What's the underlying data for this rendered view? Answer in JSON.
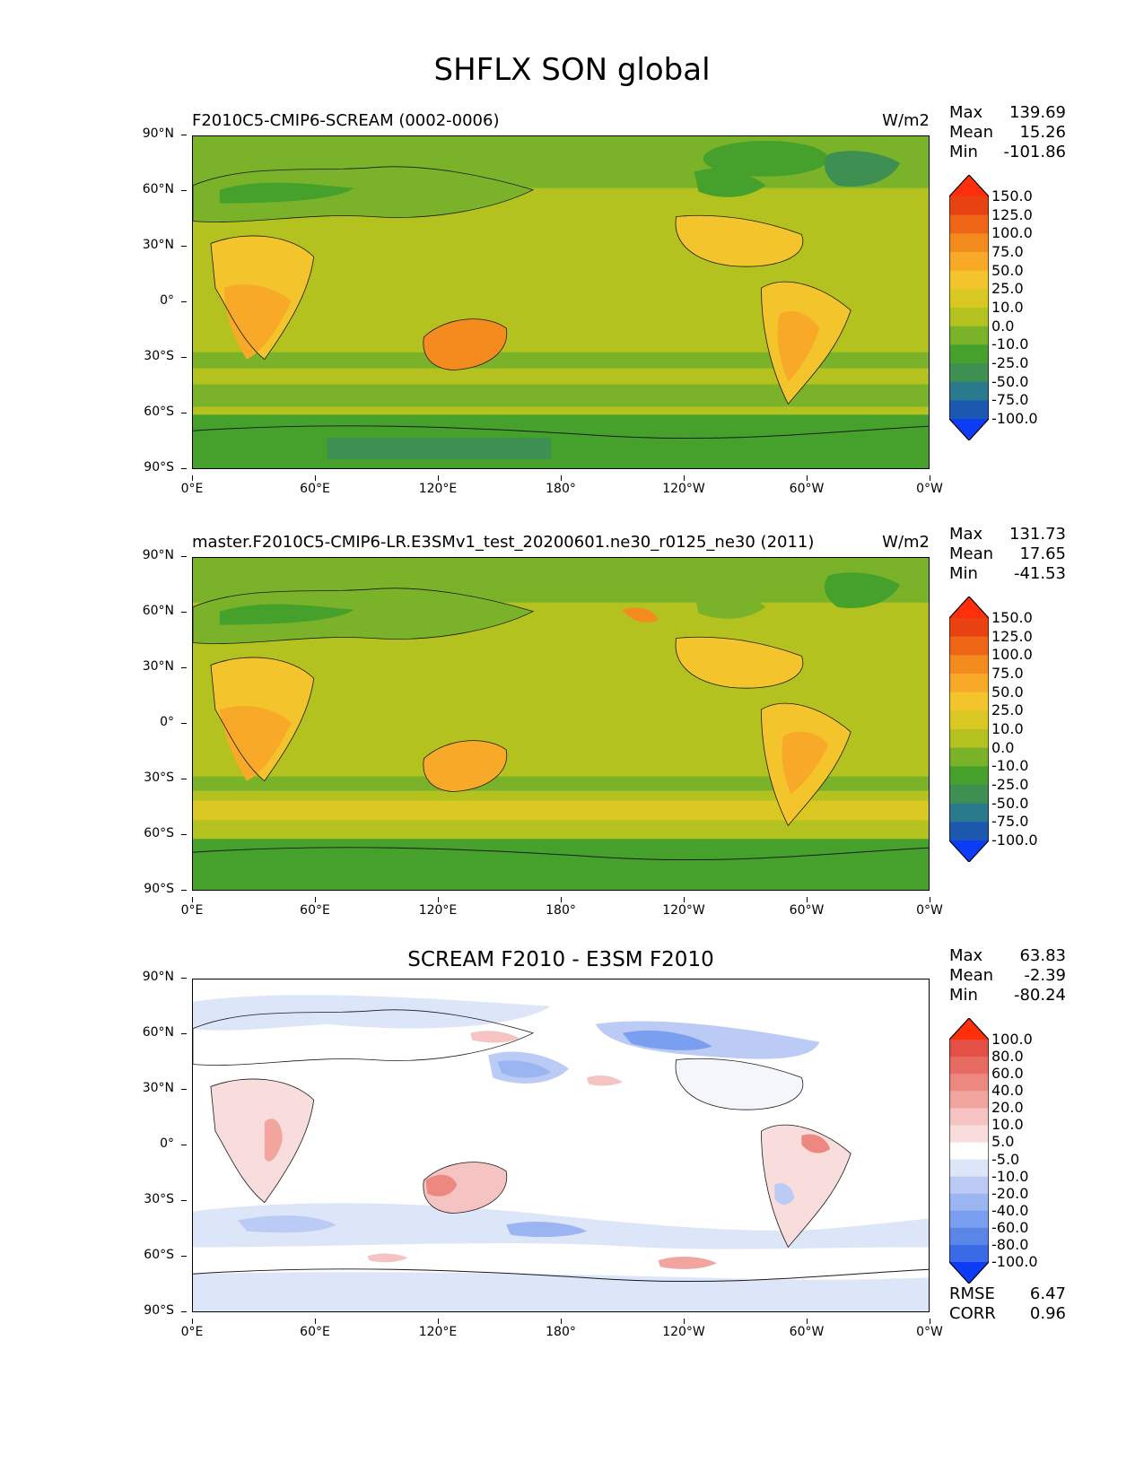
{
  "figure_title": "SHFLX SON global",
  "lat_ticks": [
    "90°N",
    "60°N",
    "30°N",
    "0°",
    "30°S",
    "60°S",
    "90°S"
  ],
  "lon_ticks": [
    "0°E",
    "60°E",
    "120°E",
    "180°",
    "120°W",
    "60°W",
    "0°W"
  ],
  "colors": {
    "test_palette": [
      "#0c3cf5",
      "#1d58b0",
      "#2a7a8e",
      "#3e8f52",
      "#45a12c",
      "#7ab22a",
      "#b3c21f",
      "#d9c722",
      "#f3c42b",
      "#f7a927",
      "#f48b1e",
      "#ef6616",
      "#e84212",
      "#ff2f0c"
    ],
    "diff_palette": [
      "#0c3cf5",
      "#3a6ae6",
      "#5a86e8",
      "#7b9ff0",
      "#9bb5f2",
      "#bccbf5",
      "#dde5f9",
      "#ffffff",
      "#f9dcdc",
      "#f6c3c3",
      "#f1a59e",
      "#ec8880",
      "#e76a63",
      "#e44f46",
      "#ff2f0c"
    ],
    "coast": "#1a1a1a"
  },
  "panels": [
    {
      "id": "test",
      "label": "F2010C5-CMIP6-SCREAM (0002-0006)",
      "units": "W/m2",
      "stats": {
        "max_label": "Max",
        "max": "139.69",
        "mean_label": "Mean",
        "mean": "15.26",
        "min_label": "Min",
        "min": "-101.86"
      },
      "colorbar_levels": [
        "150.0",
        "125.0",
        "100.0",
        "75.0",
        "50.0",
        "25.0",
        "10.0",
        "0.0",
        "-10.0",
        "-25.0",
        "-50.0",
        "-75.0",
        "-100.0"
      ]
    },
    {
      "id": "ref",
      "label": "master.F2010C5-CMIP6-LR.E3SMv1_test_20200601.ne30_r0125_ne30 (2011)",
      "units": "W/m2",
      "stats": {
        "max_label": "Max",
        "max": "131.73",
        "mean_label": "Mean",
        "mean": "17.65",
        "min_label": "Min",
        "min": "-41.53"
      },
      "colorbar_levels": [
        "150.0",
        "125.0",
        "100.0",
        "75.0",
        "50.0",
        "25.0",
        "10.0",
        "0.0",
        "-10.0",
        "-25.0",
        "-50.0",
        "-75.0",
        "-100.0"
      ]
    },
    {
      "id": "diff",
      "label": "SCREAM F2010 - E3SM F2010",
      "units": "",
      "stats": {
        "max_label": "Max",
        "max": "63.83",
        "mean_label": "Mean",
        "mean": "-2.39",
        "min_label": "Min",
        "min": "-80.24"
      },
      "colorbar_levels": [
        "100.0",
        "80.0",
        "60.0",
        "40.0",
        "20.0",
        "10.0",
        "5.0",
        "-5.0",
        "-10.0",
        "-20.0",
        "-40.0",
        "-60.0",
        "-80.0",
        "-100.0"
      ],
      "extra": {
        "rmse_label": "RMSE",
        "rmse": "6.47",
        "corr_label": "CORR",
        "corr": "0.96"
      }
    }
  ]
}
